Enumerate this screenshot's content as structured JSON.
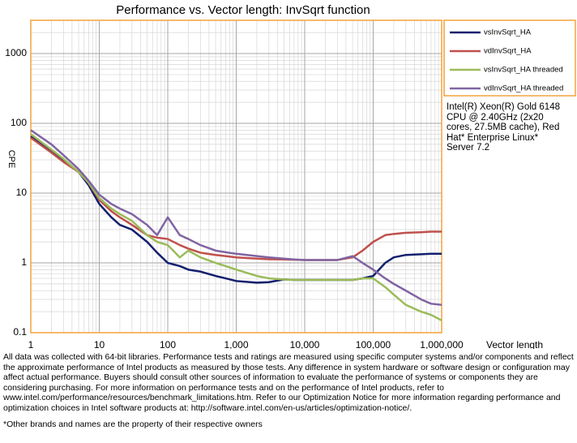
{
  "chart_data": {
    "type": "line",
    "title": "Performance vs. Vector length: InvSqrt function",
    "x_label": "Vector length",
    "y_label": "CPE",
    "x": [
      1,
      2,
      3,
      5,
      7,
      10,
      15,
      20,
      30,
      50,
      70,
      100,
      150,
      200,
      300,
      500,
      700,
      1000,
      2000,
      3000,
      5000,
      7000,
      10000,
      20000,
      30000,
      50000,
      70000,
      100000,
      150000,
      200000,
      300000,
      500000,
      700000,
      1000000
    ],
    "series": [
      {
        "name": "vsInvSqrt_HA",
        "color": "#13206e",
        "values": [
          65,
          40,
          30,
          20,
          13,
          7,
          4.5,
          3.5,
          3,
          2,
          1.4,
          1,
          0.9,
          0.8,
          0.75,
          0.65,
          0.6,
          0.55,
          0.52,
          0.53,
          0.58,
          0.57,
          0.57,
          0.57,
          0.57,
          0.57,
          0.6,
          0.65,
          1.0,
          1.2,
          1.3,
          1.33,
          1.35,
          1.35
        ]
      },
      {
        "name": "vdInvSqrt_HA",
        "color": "#c0504d",
        "values": [
          62,
          38,
          28,
          20,
          14,
          8,
          5.5,
          4.5,
          3.5,
          2.5,
          2.3,
          2.2,
          1.8,
          1.6,
          1.4,
          1.3,
          1.25,
          1.2,
          1.15,
          1.13,
          1.12,
          1.11,
          1.1,
          1.1,
          1.1,
          1.2,
          1.5,
          2.0,
          2.5,
          2.6,
          2.7,
          2.75,
          2.8,
          2.8
        ]
      },
      {
        "name": "vsInvSqrt_HA threaded",
        "color": "#9bbb59",
        "values": [
          70,
          42,
          31,
          20,
          14,
          8.5,
          6,
          5,
          4,
          2.5,
          2,
          1.8,
          1.2,
          1.5,
          1.2,
          1.0,
          0.9,
          0.8,
          0.65,
          0.6,
          0.58,
          0.57,
          0.57,
          0.57,
          0.57,
          0.57,
          0.6,
          0.6,
          0.45,
          0.35,
          0.25,
          0.2,
          0.18,
          0.15
        ]
      },
      {
        "name": "vdInvSqrt_HA threaded",
        "color": "#8064a2",
        "values": [
          80,
          50,
          35,
          22,
          15,
          9.5,
          7,
          6,
          5,
          3.5,
          2.5,
          4.5,
          2.5,
          2.2,
          1.8,
          1.5,
          1.42,
          1.35,
          1.25,
          1.2,
          1.15,
          1.12,
          1.1,
          1.1,
          1.1,
          1.25,
          1.0,
          0.8,
          0.6,
          0.5,
          0.4,
          0.3,
          0.26,
          0.25
        ]
      }
    ],
    "xlim": [
      1,
      1000000
    ],
    "ylim": [
      0.1,
      3000
    ],
    "xticks": [
      1,
      10,
      100,
      {
        "value": 1000,
        "label": "1,000"
      },
      {
        "value": 10000,
        "label": "10,000"
      },
      {
        "value": 100000,
        "label": "100,000"
      },
      {
        "value": 1000000,
        "label": "1,000,000"
      }
    ],
    "yticks": [
      0.1,
      1,
      10,
      100,
      1000
    ],
    "log_x": true,
    "log_y": true,
    "grid": true,
    "minor_grid": true,
    "legend": "right"
  },
  "system_info": "Intel(R) Xeon(R) Gold 6148 CPU @ 2.40GHz (2x20 cores, 27.5MB cache), Red Hat* Enterprise Linux* Server 7.2",
  "disclaimer": "All data was collected with 64-bit libraries. Performance tests and ratings are measured using specific computer systems and/or components and reflect the approximate performance of Intel products as measured by those tests.  Any difference in system hardware or software design or configuration may affect actual performance. Buyers should consult other sources of information to evaluate  the performance of systems or components they are considering purchasing. For more information on performance tests and on the performance of Intel products, refer to www.intel.com/performance/resources/benchmark_limitations.htm.  Refer to our Optimization  Notice for more information regarding performance and optimization  choices in Intel software products at: http://software.intel.com/en-us/articles/optimization-notice/.",
  "footnote": "*Other brands and names are the property of their respective owners"
}
